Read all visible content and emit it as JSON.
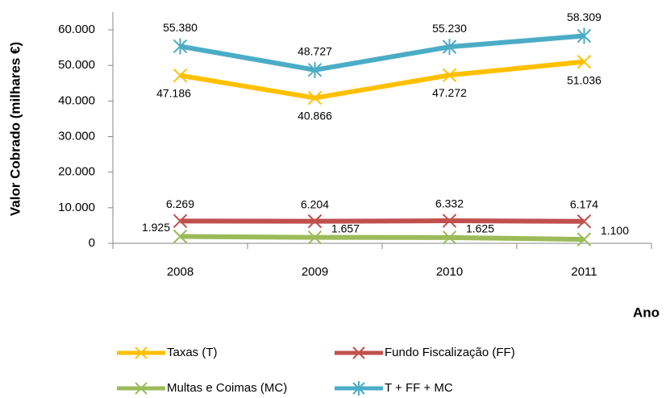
{
  "chart_data": {
    "type": "line",
    "y_label": "Valor Cobrado (milhares €)",
    "x_label": "Ano",
    "categories": [
      "2008",
      "2009",
      "2010",
      "2011"
    ],
    "series": [
      {
        "name": "Taxas (T)",
        "color": "#ffc000",
        "marker": "x",
        "values": [
          47186,
          40866,
          47272,
          51036
        ],
        "value_labels": [
          "47.186",
          "40.866",
          "47.272",
          "51.036"
        ]
      },
      {
        "name": "Fundo Fiscalização (FF)",
        "color": "#c0504d",
        "marker": "x",
        "values": [
          6269,
          6204,
          6332,
          6174
        ],
        "value_labels": [
          "6.269",
          "6.204",
          "6.332",
          "6.174"
        ]
      },
      {
        "name": "Multas e Coimas (MC)",
        "color": "#9bbb59",
        "marker": "x",
        "values": [
          1925,
          1657,
          1625,
          1100
        ],
        "value_labels": [
          "1.925",
          "1.657",
          "1.625",
          "1.100"
        ]
      },
      {
        "name": "T + FF + MC",
        "color": "#4bacc6",
        "marker": "asterisk",
        "values": [
          55380,
          48727,
          55230,
          58309
        ],
        "value_labels": [
          "55.380",
          "48.727",
          "55.230",
          "58.309"
        ]
      }
    ],
    "ylim": [
      0,
      65000
    ],
    "yticks": [
      0,
      {
        "value": 10000,
        "label": "10.000"
      },
      {
        "value": 20000,
        "label": "20.000"
      },
      {
        "value": 30000,
        "label": "30.000"
      },
      {
        "value": 40000,
        "label": "40.000"
      },
      {
        "value": 50000,
        "label": "50.000"
      },
      {
        "value": 60000,
        "label": "60.000"
      }
    ],
    "grid": false,
    "legend": "bottom"
  }
}
